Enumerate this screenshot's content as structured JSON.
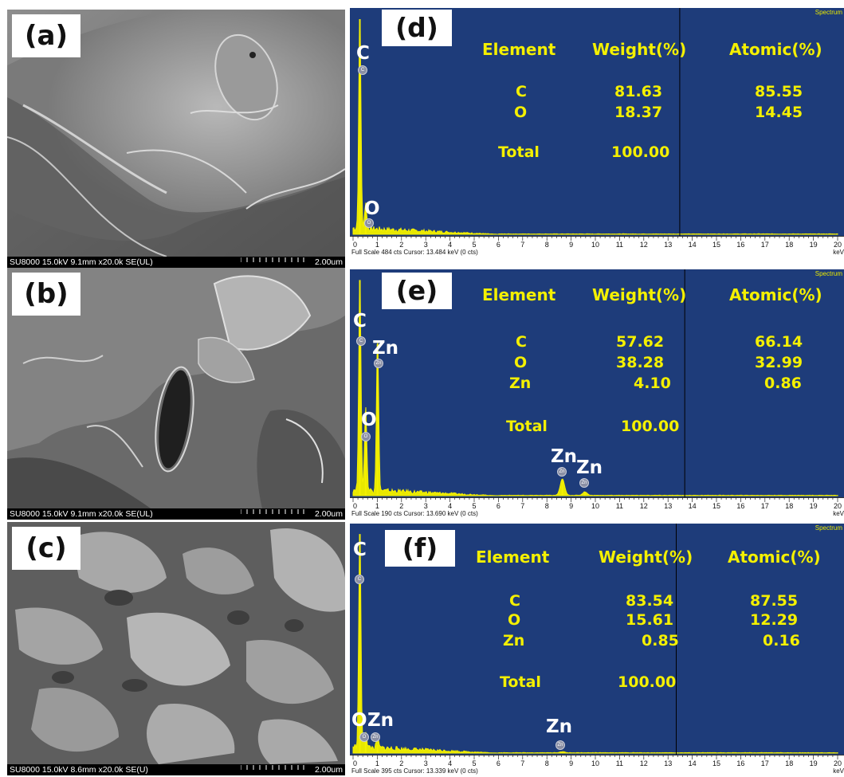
{
  "sem_panels": [
    {
      "label": "(a)",
      "meta": "SU8000 15.0kV 9.1mm x20.0k SE(UL)",
      "scale": "2.00um"
    },
    {
      "label": "(b)",
      "meta": "SU8000 15.0kV 9.1mm x20.0k SE(UL)",
      "scale": "2.00um"
    },
    {
      "label": "(c)",
      "meta": "SU8000 15.0kV 8.6mm x20.0k SE(U)",
      "scale": "2.00um"
    }
  ],
  "eds_panels": [
    {
      "label": "(d)",
      "spectrum_label": "Spectrum",
      "footer": "Full Scale 484 cts  Cursor: 13.484 keV (0 cts)",
      "unit": "keV",
      "headers": {
        "element": "Element",
        "weight": "Weight(%)",
        "atomic": "Atomic(%)"
      },
      "rows": [
        {
          "element": "C",
          "weight": "81.63",
          "atomic": "85.55"
        },
        {
          "element": "O",
          "weight": "18.37",
          "atomic": "14.45"
        }
      ],
      "total_label": "Total",
      "total_value": "100.00",
      "peak_labels": [
        {
          "id": "c",
          "text": "C",
          "bubble": "C"
        },
        {
          "id": "o",
          "text": "O",
          "bubble": "O"
        }
      ]
    },
    {
      "label": "(e)",
      "spectrum_label": "Spectrum",
      "footer": "Full Scale 190 cts  Cursor: 13.690 keV (0 cts)",
      "unit": "keV",
      "headers": {
        "element": "Element",
        "weight": "Weight(%)",
        "atomic": "Atomic(%)"
      },
      "rows": [
        {
          "element": "C",
          "weight": "57.62",
          "atomic": "66.14"
        },
        {
          "element": "O",
          "weight": "38.28",
          "atomic": "32.99"
        },
        {
          "element": "Zn",
          "weight": "4.10",
          "atomic": "0.86"
        }
      ],
      "total_label": "Total",
      "total_value": "100.00",
      "peak_labels": [
        {
          "id": "c",
          "text": "C",
          "bubble": "C"
        },
        {
          "id": "zn1",
          "text": "Zn",
          "bubble": "Zn"
        },
        {
          "id": "o",
          "text": "O",
          "bubble": "O"
        },
        {
          "id": "zn2",
          "text": "Zn",
          "bubble": "Zn"
        },
        {
          "id": "zn3",
          "text": "Zn",
          "bubble": "Zn"
        }
      ]
    },
    {
      "label": "(f)",
      "spectrum_label": "Spectrum",
      "footer": "Full Scale 395 cts  Cursor: 13.339 keV (0 cts)",
      "unit": "keV",
      "headers": {
        "element": "Element",
        "weight": "Weight(%)",
        "atomic": "Atomic(%)"
      },
      "rows": [
        {
          "element": "C",
          "weight": "83.54",
          "atomic": "87.55"
        },
        {
          "element": "O",
          "weight": "15.61",
          "atomic": "12.29"
        },
        {
          "element": "Zn",
          "weight": "0.85",
          "atomic": "0.16"
        }
      ],
      "total_label": "Total",
      "total_value": "100.00",
      "peak_labels": [
        {
          "id": "c",
          "text": "C",
          "bubble": "C"
        },
        {
          "id": "o",
          "text": "O",
          "bubble": "O"
        },
        {
          "id": "zn1",
          "text": "Zn",
          "bubble": "Zn"
        },
        {
          "id": "zn2",
          "text": "Zn",
          "bubble": "Zn"
        }
      ]
    }
  ],
  "chart_data": [
    {
      "type": "line",
      "panel": "(d)",
      "xlabel": "keV",
      "xlim": [
        0,
        20
      ],
      "x_ticks": [
        "0",
        "1",
        "2",
        "3",
        "4",
        "5",
        "6",
        "7",
        "8",
        "9",
        "10",
        "11",
        "12",
        "13",
        "14",
        "15",
        "16",
        "17",
        "18",
        "19",
        "20"
      ],
      "cursor_kev": 13.484,
      "full_scale_cts": 484,
      "peaks": [
        {
          "element": "C",
          "energy_kev": 0.28,
          "counts": 470
        },
        {
          "element": "O",
          "energy_kev": 0.52,
          "counts": 55
        }
      ]
    },
    {
      "type": "line",
      "panel": "(e)",
      "xlabel": "keV",
      "xlim": [
        0,
        20
      ],
      "x_ticks": [
        "0",
        "1",
        "2",
        "3",
        "4",
        "5",
        "6",
        "7",
        "8",
        "9",
        "10",
        "11",
        "12",
        "13",
        "14",
        "15",
        "16",
        "17",
        "18",
        "19",
        "20"
      ],
      "cursor_kev": 13.69,
      "full_scale_cts": 190,
      "peaks": [
        {
          "element": "C",
          "energy_kev": 0.28,
          "counts": 185
        },
        {
          "element": "O",
          "energy_kev": 0.52,
          "counts": 72
        },
        {
          "element": "Zn",
          "energy_kev": 1.01,
          "counts": 130
        },
        {
          "element": "Zn",
          "energy_kev": 8.64,
          "counts": 14
        },
        {
          "element": "Zn",
          "energy_kev": 9.57,
          "counts": 3
        }
      ]
    },
    {
      "type": "line",
      "panel": "(f)",
      "xlabel": "keV",
      "xlim": [
        0,
        20
      ],
      "x_ticks": [
        "0",
        "1",
        "2",
        "3",
        "4",
        "5",
        "6",
        "7",
        "8",
        "9",
        "10",
        "11",
        "12",
        "13",
        "14",
        "15",
        "16",
        "17",
        "18",
        "19",
        "20"
      ],
      "cursor_kev": 13.339,
      "full_scale_cts": 395,
      "peaks": [
        {
          "element": "C",
          "energy_kev": 0.28,
          "counts": 385
        },
        {
          "element": "O",
          "energy_kev": 0.52,
          "counts": 30
        },
        {
          "element": "Zn",
          "energy_kev": 1.01,
          "counts": 14
        },
        {
          "element": "Zn",
          "energy_kev": 8.64,
          "counts": 2
        }
      ]
    }
  ]
}
